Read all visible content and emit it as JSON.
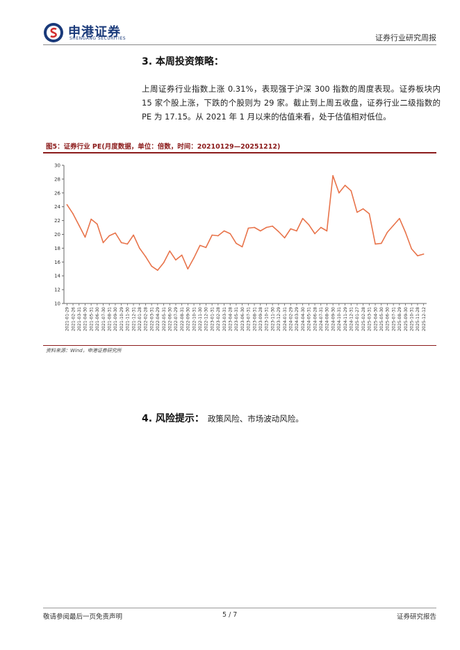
{
  "header": {
    "logo_cn": "申港证券",
    "logo_en": "SHENGANG SECURITIES",
    "report_type": "证券行业研究周报",
    "brand_color": "#1a3a7a",
    "accent_color": "#d32f2f"
  },
  "section3": {
    "title": "3. 本周投资策略：",
    "paragraph": "上周证券行业指数上涨 0.31%，表现强于沪深 300 指数的周度表现。证券板块内 15 家个股上涨，下跌的个股则为 29 家。截止到上周五收盘，证券行业二级指数的 PE 为 17.15。从 2021 年 1 月以来的估值来看，处于估值相对低位。"
  },
  "figure": {
    "title": "图5：证券行业 PE(月度数据，单位：倍数，时间：20210129—20251212)",
    "source": "资料来源：Wind，申港证券研究所"
  },
  "chart_data": {
    "type": "line",
    "title": "",
    "xlabel": "",
    "ylabel": "",
    "ylim": [
      10,
      30
    ],
    "yticks": [
      10,
      12,
      14,
      16,
      18,
      20,
      22,
      24,
      26,
      28,
      30
    ],
    "grid": false,
    "line_color": "#e8734a",
    "series": [
      {
        "name": "",
        "x": [
          "2021-01-29",
          "2021-02-26",
          "2021-03-31",
          "2021-04-30",
          "2021-05-31",
          "2021-06-30",
          "2021-07-30",
          "2021-08-31",
          "2021-09-30",
          "2021-10-29",
          "2021-11-30",
          "2021-12-31",
          "2022-01-28",
          "2022-02-28",
          "2022-03-31",
          "2022-04-29",
          "2022-05-31",
          "2022-06-30",
          "2022-07-29",
          "2022-08-31",
          "2022-09-30",
          "2022-10-31",
          "2022-11-30",
          "2022-12-30",
          "2023-01-31",
          "2023-02-28",
          "2023-03-31",
          "2023-04-28",
          "2023-05-31",
          "2023-06-30",
          "2023-07-31",
          "2023-08-31",
          "2023-09-28",
          "2023-10-31",
          "2023-11-30",
          "2023-12-29",
          "2024-01-31",
          "2024-02-29",
          "2024-03-29",
          "2024-04-30",
          "2024-05-31",
          "2024-06-28",
          "2024-07-31",
          "2024-08-30",
          "2024-09-30",
          "2024-10-31",
          "2024-11-29",
          "2024-12-31",
          "2025-01-27",
          "2025-02-28",
          "2025-03-31",
          "2025-04-30",
          "2025-05-30",
          "2025-06-30",
          "2025-07-31",
          "2025-08-29",
          "2025-09-30",
          "2025-10-31",
          "2025-11-28",
          "2025-12-12"
        ],
        "values": [
          24.3,
          23.0,
          21.3,
          19.6,
          22.2,
          21.5,
          18.8,
          19.8,
          20.2,
          18.8,
          18.6,
          19.9,
          18.0,
          16.8,
          15.4,
          14.8,
          15.9,
          17.6,
          16.3,
          17.0,
          15.0,
          16.6,
          18.4,
          18.1,
          19.9,
          19.8,
          20.5,
          20.1,
          18.7,
          18.2,
          20.9,
          21.0,
          20.5,
          21.0,
          21.2,
          20.4,
          19.5,
          20.8,
          20.5,
          22.3,
          21.4,
          20.1,
          21.0,
          20.5,
          28.5,
          26.0,
          27.1,
          26.3,
          23.2,
          23.7,
          23.0,
          18.6,
          18.7,
          20.3,
          21.3,
          22.3,
          20.3,
          17.9,
          16.9,
          17.15
        ]
      }
    ]
  },
  "section4": {
    "title": "4. 风险提示：",
    "body": "政策风险、市场波动风险。"
  },
  "footer": {
    "left": "敬请参阅最后一页免责声明",
    "page": "5 / 7",
    "right": "证券研究报告"
  }
}
